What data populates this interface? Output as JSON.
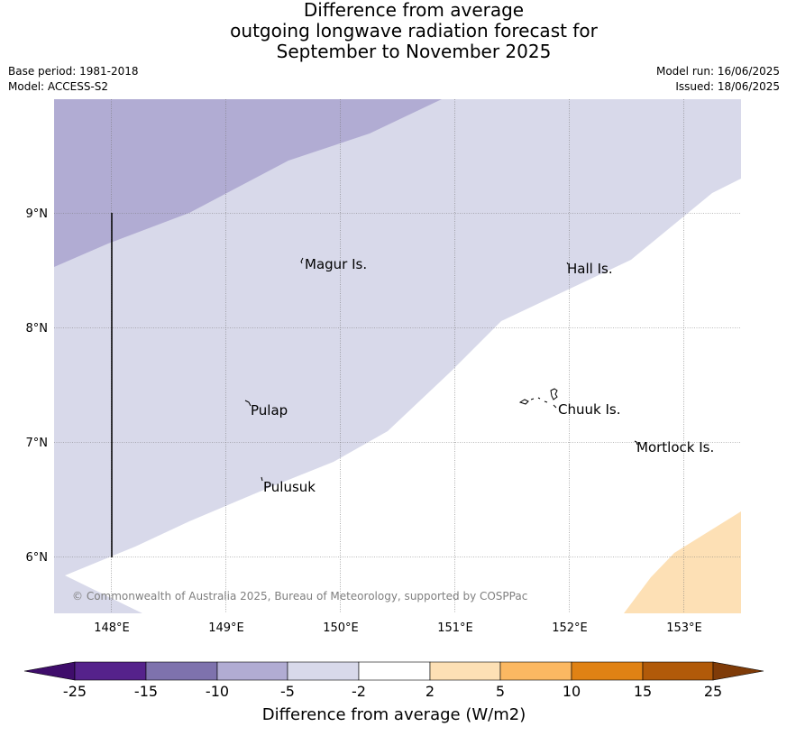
{
  "header": {
    "title_lines": [
      "Difference from average",
      "outgoing longwave radiation forecast for",
      "September to November 2025"
    ],
    "base_period": "Base period: 1981-2018",
    "model": "Model: ACCESS-S2",
    "model_run": "Model run: 16/06/2025",
    "issued": "Issued: 18/06/2025"
  },
  "map": {
    "lat_ticks": [
      "9°N",
      "8°N",
      "7°N",
      "6°N"
    ],
    "lon_ticks": [
      "148°E",
      "149°E",
      "150°E",
      "151°E",
      "152°E",
      "153°E"
    ],
    "places": [
      "Magur Is.",
      "Hall Is.",
      "Pulap",
      "Chuuk Is.",
      "Mortlock Is.",
      "Pulusuk"
    ],
    "copyright": "© Commonwealth of Australia 2025, Bureau of Meteorology, supported by COSPPac",
    "shading_colors": {
      "minus10_to_minus5": "#b1acd3",
      "minus5_to_minus2": "#d8d9ea",
      "minus2_to_2": "#ffffff",
      "2_to_5": "#fde0b5"
    }
  },
  "colorbar": {
    "labels": [
      "-25",
      "-15",
      "-10",
      "-5",
      "-2",
      "2",
      "5",
      "10",
      "15",
      "25"
    ],
    "colors": [
      "#3f0d6b",
      "#55228b",
      "#7e72ad",
      "#b1acd3",
      "#d8d9ea",
      "#ffffff",
      "#fde0b5",
      "#fbb862",
      "#e08214",
      "#b15a09",
      "#7f3b08"
    ],
    "title": "Difference from average (W/m2)"
  }
}
